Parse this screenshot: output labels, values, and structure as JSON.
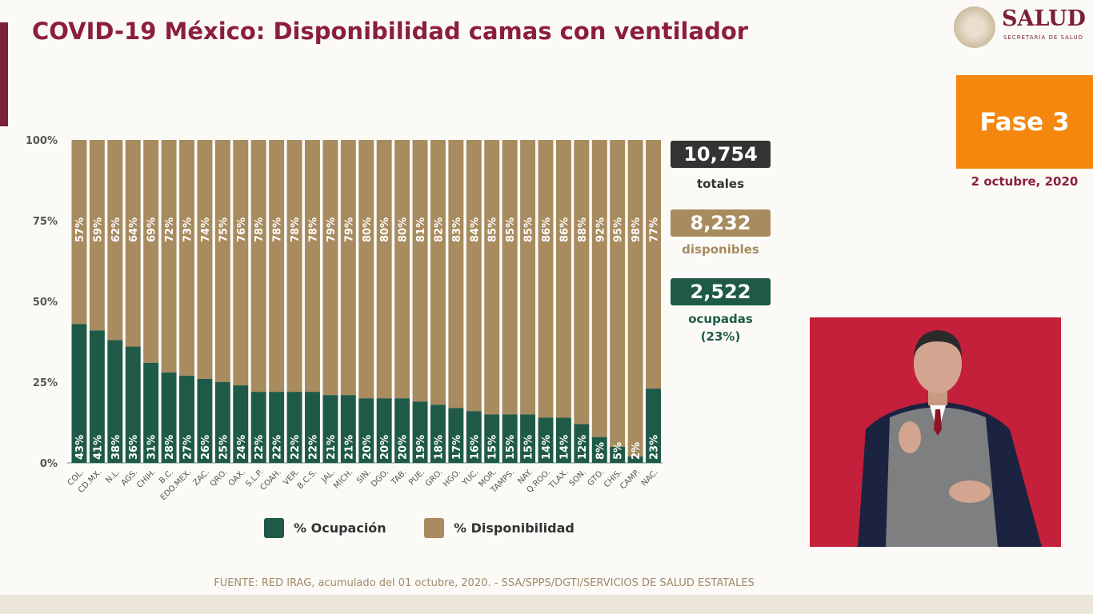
{
  "header": {
    "title": "COVID-19 México: Disponibilidad camas con ventilador",
    "logo_text": "SALUD",
    "logo_subtext": "SECRETARÍA DE SALUD"
  },
  "phase": {
    "label": "Fase 3",
    "date": "2 octubre, 2020"
  },
  "stats": {
    "total_value": "10,754",
    "total_label": "totales",
    "available_value": "8,232",
    "available_label": "disponibles",
    "occupied_value": "2,522",
    "occupied_label": "ocupadas",
    "occupied_pct": "(23%)"
  },
  "colors": {
    "occupied": "#1f5a48",
    "available": "#a88b5f",
    "title": "#8b1e3f",
    "phase": "#f5870f"
  },
  "chart_data": {
    "type": "bar",
    "stacked": true,
    "categories": [
      "COL.",
      "CD.MX.",
      "N.L.",
      "AGS.",
      "CHIH.",
      "B.C.",
      "EDO.MEX.",
      "ZAC.",
      "QRO.",
      "OAX.",
      "S.L.P.",
      "COAH.",
      "VER.",
      "B.C.S.",
      "JAL.",
      "MICH.",
      "SIN.",
      "DGO.",
      "TAB.",
      "PUE.",
      "GRO.",
      "HGO.",
      "YUC.",
      "MOR.",
      "TAMPS.",
      "NAY.",
      "Q.ROO.",
      "TLAX.",
      "SON.",
      "GTO.",
      "CHIS.",
      "CAMP.",
      "NAC."
    ],
    "series": [
      {
        "name": "% Ocupación",
        "color": "#1f5a48",
        "values": [
          43,
          41,
          38,
          36,
          31,
          28,
          27,
          26,
          25,
          24,
          22,
          22,
          22,
          22,
          21,
          21,
          20,
          20,
          20,
          19,
          18,
          17,
          16,
          15,
          15,
          15,
          14,
          14,
          12,
          8,
          5,
          2,
          23
        ]
      },
      {
        "name": "% Disponibilidad",
        "color": "#a88b5f",
        "values": [
          57,
          59,
          62,
          64,
          69,
          72,
          73,
          74,
          75,
          76,
          78,
          78,
          78,
          78,
          79,
          79,
          80,
          80,
          80,
          81,
          82,
          83,
          84,
          85,
          85,
          85,
          86,
          86,
          88,
          92,
          95,
          98,
          77
        ]
      }
    ],
    "yticks": [
      "0%",
      "25%",
      "50%",
      "75%",
      "100%"
    ],
    "ylim": [
      0,
      100
    ],
    "legend": "bottom"
  },
  "footer": "FUENTE: RED IRAG, acumulado del 01 octubre, 2020. -  SSA/SPPS/DGTI/SERVICIOS DE SALUD ESTATALES"
}
